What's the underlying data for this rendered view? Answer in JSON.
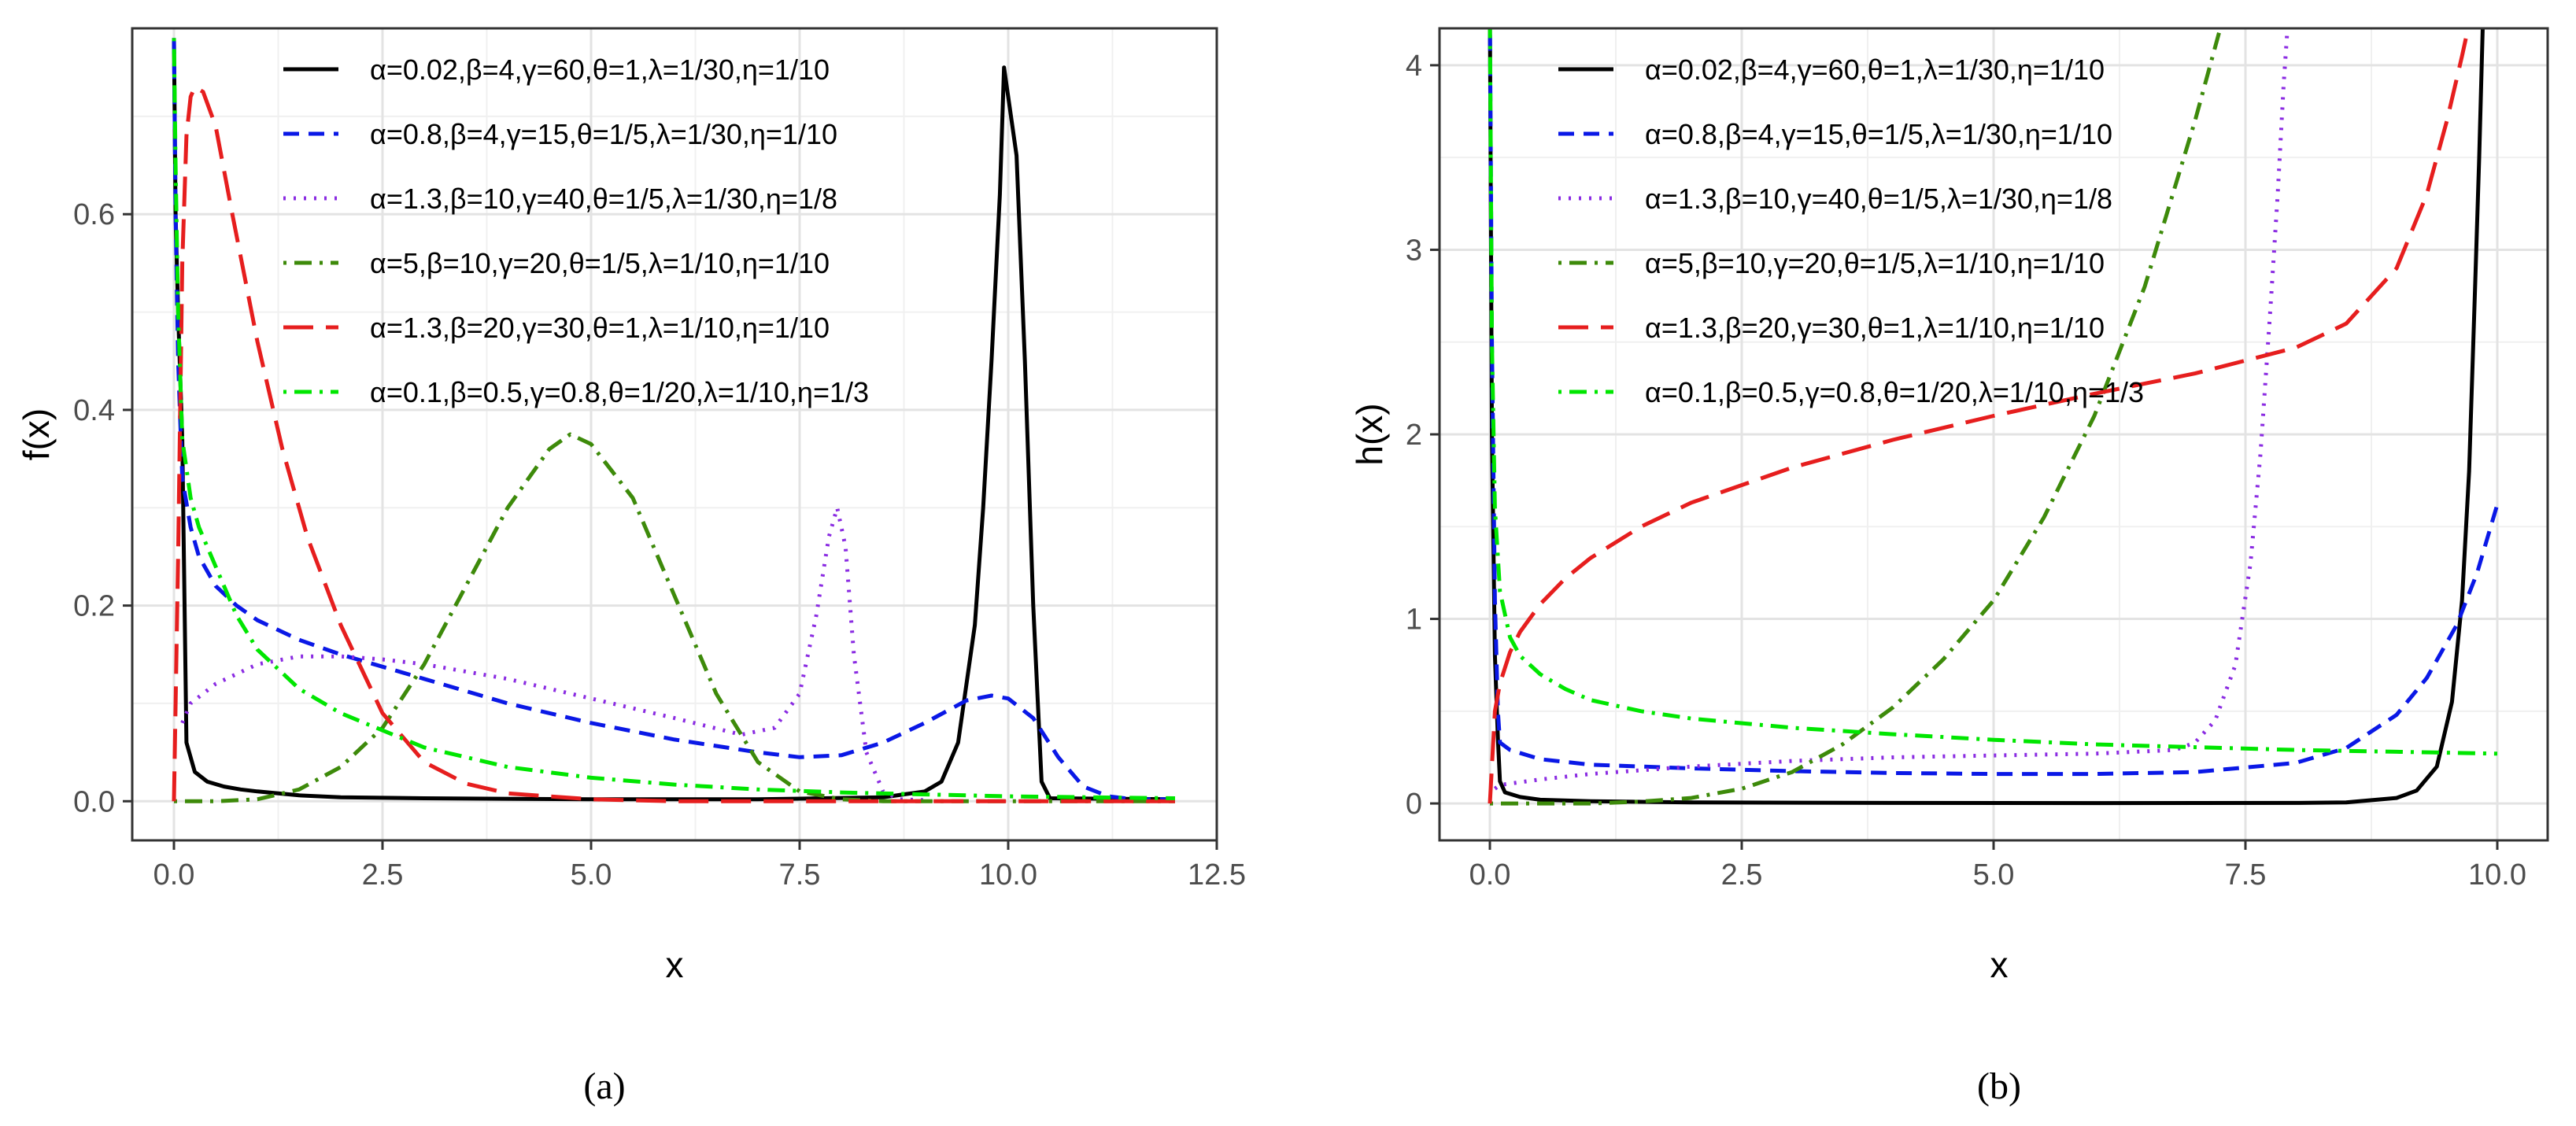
{
  "panels": [
    {
      "id": "a",
      "caption": "(a)",
      "chart_data": {
        "type": "line",
        "title": "",
        "xlabel": "x",
        "ylabel": "f(x)",
        "xlim": [
          -0.5,
          12.5
        ],
        "ylim": [
          -0.04,
          0.79
        ],
        "xticks": [
          0,
          2.5,
          5,
          7.5,
          10,
          12.5
        ],
        "xtick_labels": [
          "0.0",
          "2.5",
          "5.0",
          "7.5",
          "10.0",
          "12.5"
        ],
        "yticks": [
          0,
          0.2,
          0.4,
          0.6
        ],
        "ytick_labels": [
          "0.0",
          "0.2",
          "0.4",
          "0.6"
        ],
        "grid": true,
        "legend_position": "top-right",
        "series": [
          {
            "name": "α=0.02,β=4,γ=60,θ=1,λ=1/30,η=1/10",
            "color": "#000000",
            "dash": "solid",
            "x": [
              0,
              0.02,
              0.05,
              0.1,
              0.15,
              0.25,
              0.4,
              0.6,
              0.8,
              1.0,
              1.5,
              2.0,
              3.0,
              5.0,
              7.0,
              8.5,
              9.0,
              9.2,
              9.4,
              9.6,
              9.7,
              9.8,
              9.9,
              9.95,
              10.0,
              10.1,
              10.2,
              10.3,
              10.4,
              10.5,
              12.0
            ],
            "y": [
              0.78,
              0.6,
              0.5,
              0.37,
              0.06,
              0.03,
              0.02,
              0.015,
              0.012,
              0.01,
              0.006,
              0.004,
              0.003,
              0.002,
              0.002,
              0.004,
              0.01,
              0.02,
              0.06,
              0.18,
              0.3,
              0.45,
              0.62,
              0.75,
              0.72,
              0.66,
              0.45,
              0.2,
              0.02,
              0.003,
              0.002
            ]
          },
          {
            "name": "α=0.8,β=4,γ=15,θ=1/5,λ=1/30,η=1/10",
            "color": "#0a18e6",
            "dash": "dashed",
            "x": [
              0,
              0.02,
              0.05,
              0.1,
              0.2,
              0.3,
              0.5,
              0.75,
              1.0,
              1.5,
              2.0,
              3.0,
              4.0,
              5.0,
              6.0,
              7.0,
              7.5,
              8.0,
              8.5,
              9.0,
              9.5,
              9.8,
              10.0,
              10.3,
              10.6,
              10.9,
              11.2,
              11.5,
              12.0
            ],
            "y": [
              0.78,
              0.6,
              0.45,
              0.33,
              0.28,
              0.25,
              0.22,
              0.2,
              0.185,
              0.165,
              0.15,
              0.125,
              0.1,
              0.08,
              0.063,
              0.05,
              0.045,
              0.047,
              0.06,
              0.08,
              0.103,
              0.108,
              0.105,
              0.085,
              0.045,
              0.015,
              0.005,
              0.002,
              0.002
            ]
          },
          {
            "name": "α=1.3,β=10,γ=40,θ=1/5,λ=1/30,η=1/8",
            "color": "#8a2be2",
            "dash": "dotted",
            "x": [
              0.1,
              0.2,
              0.5,
              1.0,
              1.5,
              2.0,
              2.5,
              3.0,
              4.0,
              5.0,
              6.0,
              6.8,
              7.2,
              7.5,
              7.7,
              7.85,
              7.95,
              8.05,
              8.15,
              8.3,
              8.5,
              8.7,
              9.0
            ],
            "y": [
              0.08,
              0.1,
              0.12,
              0.14,
              0.148,
              0.148,
              0.145,
              0.14,
              0.125,
              0.105,
              0.085,
              0.068,
              0.075,
              0.11,
              0.19,
              0.27,
              0.3,
              0.26,
              0.15,
              0.05,
              0.01,
              0.002,
              0.001
            ]
          },
          {
            "name": "α=5,β=10,γ=20,θ=1/5,λ=1/10,η=1/10",
            "color": "#3d8a0a",
            "dash": "dotdash",
            "x": [
              0,
              0.5,
              1.0,
              1.5,
              2.0,
              2.5,
              3.0,
              3.5,
              4.0,
              4.5,
              4.75,
              5.0,
              5.5,
              6.0,
              6.5,
              7.0,
              7.5,
              8.0,
              8.5,
              12.0
            ],
            "y": [
              0,
              0.0,
              0.002,
              0.012,
              0.035,
              0.075,
              0.14,
              0.22,
              0.3,
              0.36,
              0.375,
              0.365,
              0.31,
              0.21,
              0.11,
              0.04,
              0.01,
              0.002,
              0.0,
              0.0
            ]
          },
          {
            "name": "α=1.3,β=20,γ=30,θ=1,λ=1/10,η=1/10",
            "color": "#e61e1e",
            "dash": "longdash",
            "x": [
              0,
              0.05,
              0.1,
              0.15,
              0.2,
              0.25,
              0.35,
              0.5,
              0.7,
              1.0,
              1.3,
              1.6,
              2.0,
              2.5,
              3.0,
              3.5,
              4.0,
              5.0,
              6.0,
              8.0,
              12.0
            ],
            "y": [
              0,
              0.25,
              0.55,
              0.68,
              0.72,
              0.73,
              0.725,
              0.69,
              0.6,
              0.47,
              0.36,
              0.27,
              0.18,
              0.09,
              0.04,
              0.018,
              0.008,
              0.002,
              0.0,
              0.0,
              0.0
            ]
          },
          {
            "name": "α=0.1,β=0.5,γ=0.8,θ=1/20,λ=1/10,η=1/3",
            "color": "#00e600",
            "dash": "dotdash",
            "x": [
              0,
              0.02,
              0.05,
              0.1,
              0.2,
              0.3,
              0.5,
              0.75,
              1.0,
              1.5,
              2.0,
              3.0,
              4.0,
              5.0,
              6.0,
              7.0,
              8.0,
              9.0,
              10.0,
              11.0,
              12.0
            ],
            "y": [
              0.78,
              0.65,
              0.5,
              0.37,
              0.31,
              0.28,
              0.24,
              0.19,
              0.155,
              0.115,
              0.09,
              0.055,
              0.035,
              0.024,
              0.017,
              0.012,
              0.009,
              0.007,
              0.005,
              0.004,
              0.003
            ]
          }
        ]
      }
    },
    {
      "id": "b",
      "caption": "(b)",
      "chart_data": {
        "type": "line",
        "title": "",
        "xlabel": "x",
        "ylabel": "h(x)",
        "xlim": [
          -0.5,
          10.5
        ],
        "ylim": [
          -0.2,
          4.2
        ],
        "xticks": [
          0,
          2.5,
          5,
          7.5,
          10
        ],
        "xtick_labels": [
          "0.0",
          "2.5",
          "5.0",
          "7.5",
          "10.0"
        ],
        "yticks": [
          0,
          1,
          2,
          3,
          4
        ],
        "ytick_labels": [
          "0",
          "1",
          "2",
          "3",
          "4"
        ],
        "grid": true,
        "legend_position": "top-right",
        "series": [
          {
            "name": "α=0.02,β=4,γ=60,θ=1,λ=1/30,η=1/10",
            "color": "#000000",
            "dash": "solid",
            "x": [
              0,
              0.02,
              0.05,
              0.08,
              0.1,
              0.15,
              0.3,
              0.5,
              1.0,
              2.0,
              4.0,
              6.0,
              8.0,
              8.5,
              9.0,
              9.2,
              9.4,
              9.55,
              9.65,
              9.72,
              9.78,
              9.82,
              9.86
            ],
            "y": [
              4.3,
              2.0,
              0.8,
              0.35,
              0.12,
              0.06,
              0.035,
              0.02,
              0.012,
              0.006,
              0.003,
              0.002,
              0.003,
              0.006,
              0.03,
              0.07,
              0.2,
              0.55,
              1.1,
              1.8,
              2.8,
              3.5,
              4.3
            ]
          },
          {
            "name": "α=0.8,β=4,γ=15,θ=1/5,λ=1/30,η=1/10",
            "color": "#0a18e6",
            "dash": "dashed",
            "x": [
              0,
              0.02,
              0.05,
              0.08,
              0.1,
              0.2,
              0.5,
              1.0,
              2.0,
              3.0,
              4.0,
              5.0,
              6.0,
              7.0,
              8.0,
              8.5,
              9.0,
              9.3,
              9.6,
              9.8,
              10.0
            ],
            "y": [
              4.3,
              2.5,
              1.1,
              0.5,
              0.33,
              0.29,
              0.24,
              0.21,
              0.19,
              0.175,
              0.165,
              0.16,
              0.16,
              0.17,
              0.22,
              0.3,
              0.48,
              0.68,
              0.97,
              1.25,
              1.62
            ]
          },
          {
            "name": "α=1.3,β=10,γ=40,θ=1/5,λ=1/30,η=1/8",
            "color": "#8a2be2",
            "dash": "dotted",
            "x": [
              0.05,
              0.1,
              0.5,
              1.0,
              2.0,
              3.0,
              4.0,
              5.0,
              6.0,
              6.8,
              7.0,
              7.2,
              7.4,
              7.55,
              7.65,
              7.75,
              7.82,
              7.88,
              7.93
            ],
            "y": [
              0.08,
              0.1,
              0.13,
              0.16,
              0.2,
              0.23,
              0.25,
              0.26,
              0.27,
              0.29,
              0.33,
              0.45,
              0.75,
              1.3,
              1.9,
              2.7,
              3.3,
              3.9,
              4.3
            ]
          },
          {
            "name": "α=5,β=10,γ=20,θ=1/5,λ=1/10,η=1/10",
            "color": "#3d8a0a",
            "dash": "dotdash",
            "x": [
              0,
              1.0,
              1.5,
              2.0,
              2.5,
              3.0,
              3.5,
              4.0,
              4.5,
              5.0,
              5.5,
              6.0,
              6.5,
              7.0,
              7.3
            ],
            "y": [
              0,
              0.0,
              0.01,
              0.03,
              0.08,
              0.17,
              0.32,
              0.52,
              0.78,
              1.1,
              1.55,
              2.1,
              2.8,
              3.7,
              4.3
            ]
          },
          {
            "name": "α=1.3,β=20,γ=30,θ=1,λ=1/10,η=1/10",
            "color": "#e61e1e",
            "dash": "longdash",
            "x": [
              0,
              0.05,
              0.1,
              0.2,
              0.3,
              0.5,
              0.75,
              1.0,
              1.5,
              2.0,
              3.0,
              4.0,
              5.0,
              6.0,
              7.0,
              8.0,
              8.5,
              9.0,
              9.3,
              9.5,
              9.65,
              9.75
            ],
            "y": [
              0,
              0.5,
              0.65,
              0.82,
              0.93,
              1.08,
              1.22,
              1.33,
              1.5,
              1.63,
              1.82,
              1.97,
              2.1,
              2.22,
              2.33,
              2.47,
              2.6,
              2.9,
              3.3,
              3.7,
              4.05,
              4.3
            ]
          },
          {
            "name": "α=0.1,β=0.5,γ=0.8,θ=1/20,λ=1/10,η=1/3",
            "color": "#00e600",
            "dash": "dotdash",
            "x": [
              0,
              0.02,
              0.05,
              0.1,
              0.2,
              0.3,
              0.5,
              0.75,
              1.0,
              1.5,
              2.0,
              3.0,
              4.0,
              5.0,
              6.0,
              7.0,
              8.0,
              9.0,
              10.0
            ],
            "y": [
              4.3,
              2.5,
              1.6,
              1.15,
              0.9,
              0.8,
              0.7,
              0.62,
              0.56,
              0.5,
              0.46,
              0.41,
              0.375,
              0.345,
              0.32,
              0.305,
              0.29,
              0.28,
              0.27
            ]
          }
        ]
      }
    }
  ]
}
